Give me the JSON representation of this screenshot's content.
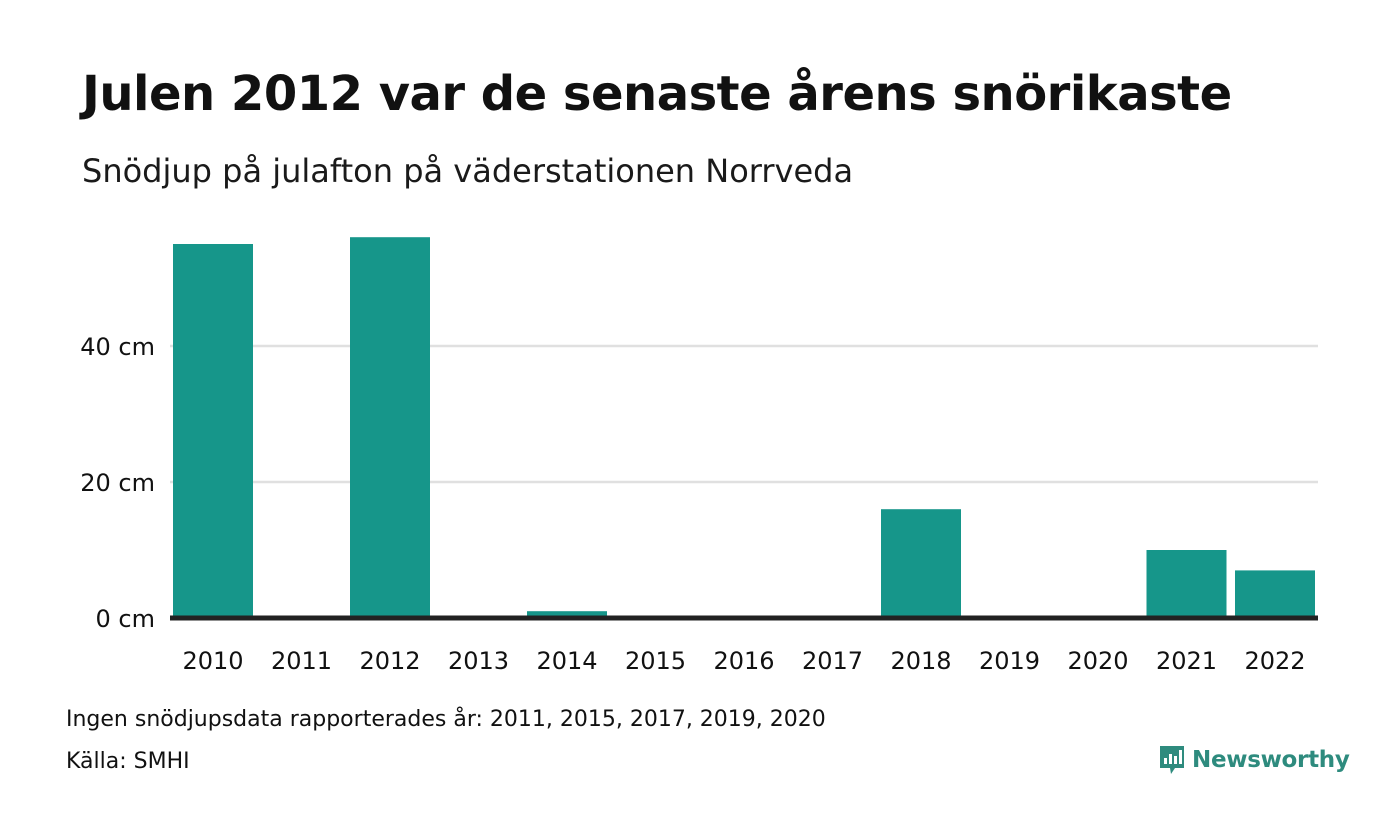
{
  "header": {
    "title": "Julen 2012 var de senaste årens snörikaste",
    "subtitle": "Snödjup på julafton på väderstationen Norrveda"
  },
  "chart_data": {
    "type": "bar",
    "categories": [
      "2010",
      "2011",
      "2012",
      "2013",
      "2014",
      "2015",
      "2016",
      "2017",
      "2018",
      "2019",
      "2020",
      "2021",
      "2022"
    ],
    "values": [
      55,
      null,
      56,
      0,
      1,
      null,
      0,
      null,
      16,
      null,
      null,
      10,
      7
    ],
    "ylim": [
      0,
      56
    ],
    "yticks": [
      0,
      20,
      40
    ],
    "ytick_labels": [
      "0 cm",
      "20 cm",
      "40 cm"
    ],
    "bar_color": "#16968a",
    "grid": true
  },
  "footer": {
    "note": "Ingen snödjupsdata rapporterades år: 2011, 2015, 2017, 2019, 2020",
    "source": "Källa: SMHI",
    "brand": "Newsworthy"
  },
  "colors": {
    "bar": "#16968a",
    "brand": "#2e8b7e",
    "grid": "#e0e0e0",
    "baseline": "#222222"
  }
}
